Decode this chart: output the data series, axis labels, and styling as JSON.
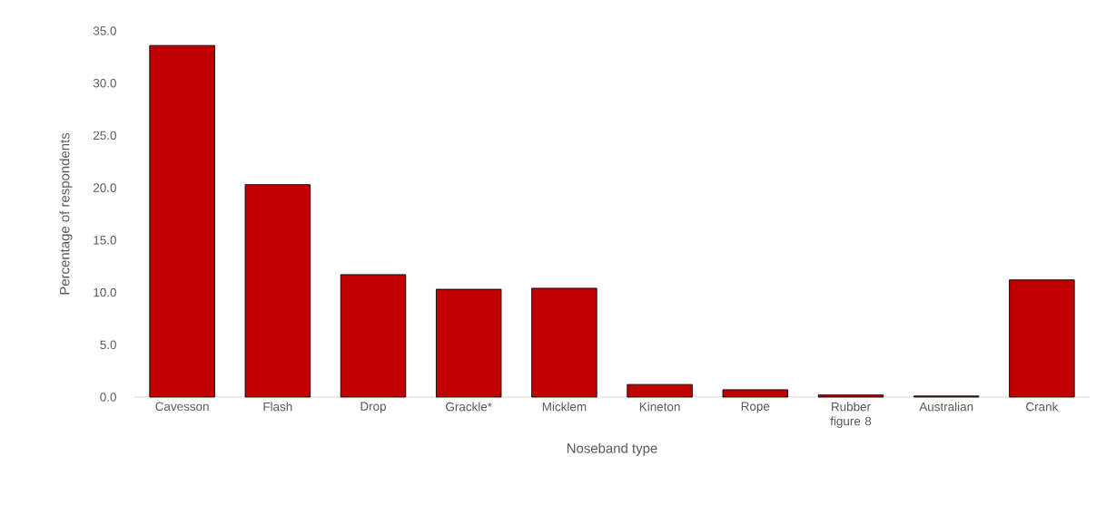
{
  "chart_data": {
    "type": "bar",
    "xlabel": "Noseband type",
    "ylabel": "Percentage of respondents",
    "categories": [
      "Cavesson",
      "Flash",
      "Drop",
      "Grackle*",
      "Micklem",
      "Kineton",
      "Rope",
      "Rubber figure 8",
      "Australian",
      "Crank"
    ],
    "values": [
      33.6,
      20.3,
      11.7,
      10.3,
      10.4,
      1.2,
      0.7,
      0.2,
      0.1,
      11.2
    ],
    "color": "#c00000",
    "ylim": [
      0,
      35
    ],
    "yticks": [
      {
        "value": 0,
        "label": "0.0"
      },
      {
        "value": 5,
        "label": "5.0"
      },
      {
        "value": 10,
        "label": "10.0"
      },
      {
        "value": 15,
        "label": "15.0"
      },
      {
        "value": 20,
        "label": "20.0"
      },
      {
        "value": 25,
        "label": "25.0"
      },
      {
        "value": 30,
        "label": "30.0"
      },
      {
        "value": 35,
        "label": "35.0"
      }
    ],
    "grid": false
  }
}
